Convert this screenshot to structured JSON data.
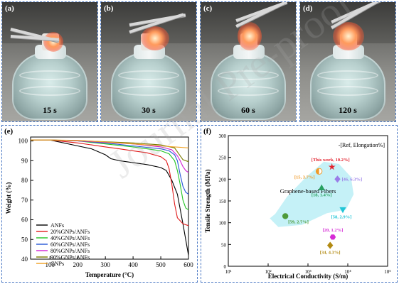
{
  "photos": [
    {
      "label": "(a)",
      "time": "15 s"
    },
    {
      "label": "(b)",
      "time": "30 s"
    },
    {
      "label": "(c)",
      "time": "60 s"
    },
    {
      "label": "(d)",
      "time": "120 s"
    }
  ],
  "watermark": "Journal Pre-proof",
  "chart_data": [
    {
      "panel_label": "(e)",
      "type": "line",
      "xlabel": "Temperature (°C)",
      "ylabel": "Weight (%)",
      "xlim": [
        30,
        600
      ],
      "ylim": [
        40,
        102
      ],
      "xticks": [
        100,
        200,
        300,
        400,
        500,
        600
      ],
      "yticks": [
        40,
        50,
        60,
        70,
        80,
        90,
        100
      ],
      "legend_position": "bottom-left",
      "colors": {
        "ANFs": "#000000",
        "20%GNPs/ANFs": "#e01b1b",
        "40%GNPs/ANFs": "#22c422",
        "60%GNPs/ANFs": "#2456d6",
        "80%GNPs/ANFs": "#d21fd2",
        "90%GNPs/ANFs": "#7a7a00",
        "GNPs": "#f0a020"
      },
      "series": [
        {
          "name": "ANFs",
          "x": [
            30,
            100,
            150,
            200,
            250,
            300,
            320,
            350,
            400,
            450,
            500,
            520,
            540,
            560,
            580,
            600
          ],
          "y": [
            100.5,
            100.5,
            99,
            97.5,
            96,
            93,
            91,
            90,
            89,
            88,
            86.5,
            85,
            80,
            73,
            58,
            42
          ]
        },
        {
          "name": "20%GNPs/ANFs",
          "x": [
            30,
            100,
            200,
            250,
            300,
            350,
            400,
            450,
            500,
            520,
            530,
            540,
            550,
            560,
            580,
            600
          ],
          "y": [
            100.5,
            100.5,
            99,
            98,
            97,
            96,
            95,
            94,
            92,
            90,
            86,
            78,
            68,
            61,
            58,
            57
          ]
        },
        {
          "name": "40%GNPs/ANFs",
          "x": [
            30,
            100,
            200,
            300,
            400,
            450,
            500,
            530,
            550,
            560,
            570,
            580,
            590,
            600
          ],
          "y": [
            100.5,
            100.5,
            100,
            98.5,
            97,
            96,
            95,
            93.5,
            90,
            85,
            78,
            70,
            66,
            65
          ]
        },
        {
          "name": "60%GNPs/ANFs",
          "x": [
            30,
            100,
            200,
            300,
            400,
            500,
            530,
            550,
            560,
            570,
            580,
            590,
            600
          ],
          "y": [
            100.5,
            100.5,
            100,
            99,
            97.5,
            96,
            95,
            93,
            90,
            83,
            77,
            74,
            73
          ]
        },
        {
          "name": "80%GNPs/ANFs",
          "x": [
            30,
            100,
            200,
            300,
            400,
            500,
            540,
            560,
            570,
            580,
            590,
            600
          ],
          "y": [
            100.5,
            100.5,
            100,
            99.3,
            98.5,
            97,
            95.5,
            92.5,
            90,
            87,
            85,
            84
          ]
        },
        {
          "name": "90%GNPs/ANFs",
          "x": [
            30,
            100,
            200,
            300,
            400,
            500,
            550,
            570,
            580,
            590,
            600
          ],
          "y": [
            100.5,
            100.5,
            100.2,
            99.6,
            99,
            98,
            96.5,
            92.5,
            90.5,
            90,
            89.5
          ]
        },
        {
          "name": "GNPs",
          "x": [
            30,
            100,
            200,
            300,
            400,
            500,
            550,
            600
          ],
          "y": [
            100.5,
            100.5,
            100.3,
            99.5,
            98.5,
            97.5,
            97,
            96.5
          ]
        }
      ]
    },
    {
      "panel_label": "(f)",
      "type": "scatter",
      "xlabel": "Electrical Conductivity (S/m)",
      "ylabel": "Tensile Strength (MPa)",
      "xscale": "log",
      "xlim": [
        10,
        100000
      ],
      "ylim": [
        0,
        300
      ],
      "xticks": [
        10,
        100,
        1000,
        10000,
        100000
      ],
      "xtick_labels": [
        "10¹",
        "10²",
        "10³",
        "10⁴",
        "10⁵"
      ],
      "yticks": [
        0,
        50,
        100,
        150,
        200,
        250,
        300
      ],
      "legend_note": "-[Ref, Elongation%]",
      "region_label": "Graphene-based Fibers",
      "region_color": "#bfeff6",
      "points": [
        {
          "label": "[This work, 10.2%]",
          "x": 4000,
          "y": 228,
          "marker": "star",
          "color": "#e3202c",
          "label_color": "#e3202c"
        },
        {
          "label": "[15, 3.7%]",
          "x": 1900,
          "y": 218,
          "marker": "half-circle",
          "color": "#f09a28",
          "label_color": "#f09a28"
        },
        {
          "label": "[46, 6.3%]",
          "x": 5500,
          "y": 200,
          "marker": "diamond",
          "color": "#9a7de8",
          "label_color": "#9a7de8"
        },
        {
          "label": "[18, 1.4%]",
          "x": 2200,
          "y": 180,
          "marker": "triangle",
          "color": "#27a060",
          "label_color": "#27a060"
        },
        {
          "label": "[58, 2.9%]",
          "x": 7500,
          "y": 130,
          "marker": "triangle-down",
          "color": "#22c5d6",
          "label_color": "#22c5d6"
        },
        {
          "label": "[59, 2.7%]",
          "x": 270,
          "y": 115,
          "marker": "circle",
          "color": "#4e9a3a",
          "label_color": "#4e9a3a"
        },
        {
          "label": "[20, 1.2%]",
          "x": 4200,
          "y": 67,
          "marker": "hexagon",
          "color": "#d62ad6",
          "label_color": "#d62ad6"
        },
        {
          "label": "[34, 4.3%]",
          "x": 3600,
          "y": 48,
          "marker": "diamond",
          "color": "#b28a12",
          "label_color": "#b28a12"
        }
      ]
    }
  ]
}
